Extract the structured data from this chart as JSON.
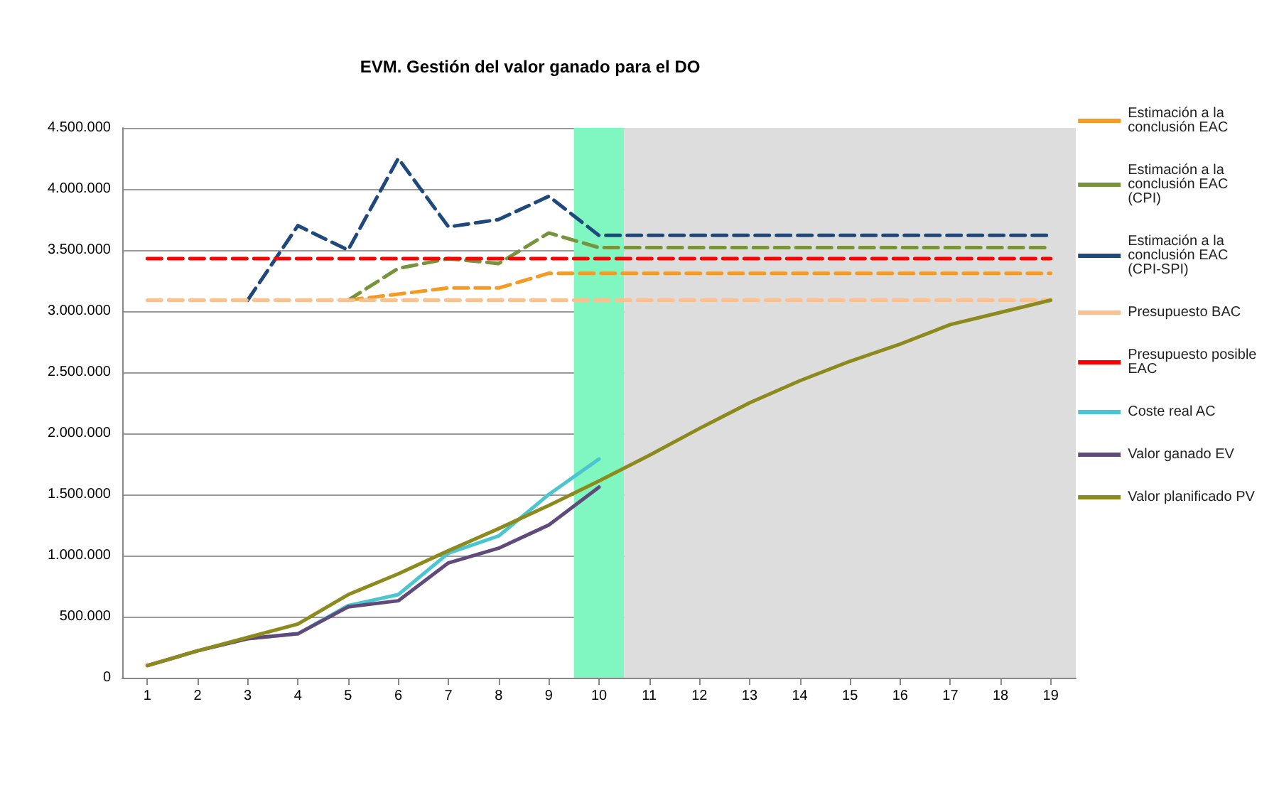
{
  "chart_data": {
    "type": "line",
    "title": "EVM. Gestión del valor ganado para el DO",
    "x": [
      1,
      2,
      3,
      4,
      5,
      6,
      7,
      8,
      9,
      10,
      11,
      12,
      13,
      14,
      15,
      16,
      17,
      18,
      19
    ],
    "xlim": [
      0.5,
      19.5
    ],
    "xticks": [
      1,
      2,
      3,
      4,
      5,
      6,
      7,
      8,
      9,
      10,
      11,
      12,
      13,
      14,
      15,
      16,
      17,
      18,
      19
    ],
    "ylim": [
      0,
      4500000
    ],
    "yticks": [
      {
        "value": 0,
        "label": "0"
      },
      {
        "value": 500000,
        "label": "500.000"
      },
      {
        "value": 1000000,
        "label": "1.000.000"
      },
      {
        "value": 1500000,
        "label": "1.500.000"
      },
      {
        "value": 2000000,
        "label": "2.000.000"
      },
      {
        "value": 2500000,
        "label": "2.500.000"
      },
      {
        "value": 3000000,
        "label": "3.000.000"
      },
      {
        "value": 3500000,
        "label": "3.500.000"
      },
      {
        "value": 4000000,
        "label": "4.000.000"
      },
      {
        "value": 4500000,
        "label": "4.500.000"
      }
    ],
    "grid": "y",
    "legend": "right",
    "marker": "none",
    "bands": [
      {
        "axis": "x",
        "from": 9.5,
        "to": 10.5,
        "color": "#80f7c0"
      },
      {
        "axis": "x",
        "from": 10.5,
        "to": 19.5,
        "color": "#dddddd"
      }
    ],
    "series": [
      {
        "name": "Estimación a la conclusión EAC",
        "color": "#f59a23",
        "line_style": "dashed",
        "values": [
          null,
          null,
          null,
          null,
          3090000,
          3140000,
          3190000,
          3190000,
          3310000,
          3310000,
          3310000,
          3310000,
          3310000,
          3310000,
          3310000,
          3310000,
          3310000,
          3310000,
          3310000
        ]
      },
      {
        "name": "Estimación a la conclusión EAC (CPI)",
        "color": "#77933c",
        "line_style": "dashed",
        "values": [
          null,
          null,
          null,
          null,
          3090000,
          3350000,
          3430000,
          3390000,
          3640000,
          3520000,
          3520000,
          3520000,
          3520000,
          3520000,
          3520000,
          3520000,
          3520000,
          3520000,
          3520000
        ]
      },
      {
        "name": "Estimación a la conclusión EAC (CPI-SPI)",
        "color": "#1f497d",
        "line_style": "dashed",
        "values": [
          null,
          null,
          3090000,
          3700000,
          3500000,
          4250000,
          3690000,
          3750000,
          3940000,
          3620000,
          3620000,
          3620000,
          3620000,
          3620000,
          3620000,
          3620000,
          3620000,
          3620000,
          3620000
        ]
      },
      {
        "name": "Presupuesto BAC",
        "color": "#fac090",
        "line_style": "dashed",
        "values": [
          3090000,
          3090000,
          3090000,
          3090000,
          3090000,
          3090000,
          3090000,
          3090000,
          3090000,
          3090000,
          3090000,
          3090000,
          3090000,
          3090000,
          3090000,
          3090000,
          3090000,
          3090000,
          3090000
        ]
      },
      {
        "name": "Presupuesto posible EAC",
        "color": "#ff0000",
        "line_style": "dashed",
        "values": [
          3430000,
          3430000,
          3430000,
          3430000,
          3430000,
          3430000,
          3430000,
          3430000,
          3430000,
          3430000,
          3430000,
          3430000,
          3430000,
          3430000,
          3430000,
          3430000,
          3430000,
          3430000,
          3430000
        ]
      },
      {
        "name": "Coste real AC",
        "color": "#4bc6d0",
        "line_style": "solid",
        "values": [
          null,
          null,
          320000,
          360000,
          590000,
          680000,
          1020000,
          1160000,
          1500000,
          1790000,
          null,
          null,
          null,
          null,
          null,
          null,
          null,
          null,
          null
        ]
      },
      {
        "name": "Valor ganado EV",
        "color": "#604a7b",
        "line_style": "solid",
        "values": [
          100000,
          220000,
          320000,
          360000,
          580000,
          630000,
          940000,
          1060000,
          1250000,
          1560000,
          null,
          null,
          null,
          null,
          null,
          null,
          null,
          null,
          null
        ]
      },
      {
        "name": "Valor planificado PV",
        "color": "#8c8a1c",
        "line_style": "solid",
        "values": [
          100000,
          220000,
          330000,
          440000,
          680000,
          850000,
          1040000,
          1220000,
          1410000,
          1610000,
          1820000,
          2040000,
          2250000,
          2430000,
          2590000,
          2730000,
          2890000,
          2990000,
          3090000
        ]
      }
    ]
  }
}
